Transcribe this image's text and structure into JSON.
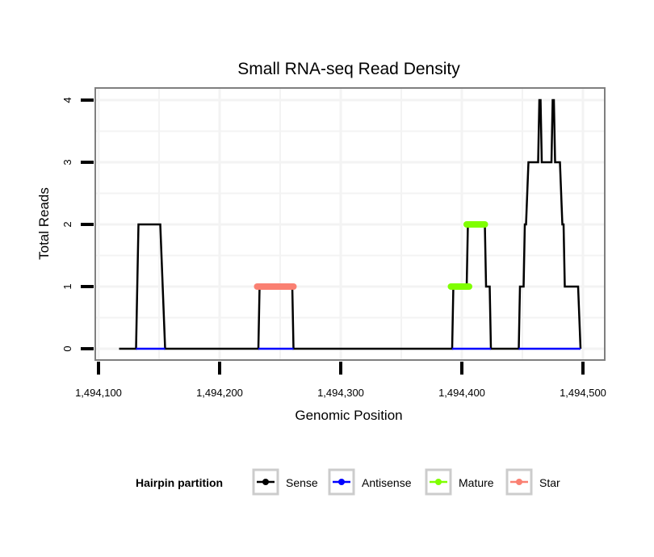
{
  "chart_data": {
    "type": "line",
    "title": "Small RNA-seq Read Density",
    "xlabel": "Genomic Position",
    "ylabel": "Total Reads",
    "xlim": [
      1494090,
      1494510
    ],
    "ylim": [
      -0.18,
      4.18
    ],
    "x_ticks": [
      1494100,
      1494200,
      1494300,
      1494400,
      1494500
    ],
    "x_tick_labels": [
      "1,494,100",
      "1,494,200",
      "1,494,300",
      "1,494,400",
      "1,494,500"
    ],
    "y_ticks": [
      0,
      1,
      2,
      3,
      4
    ],
    "y_tick_labels": [
      "0",
      "1",
      "2",
      "3",
      "4"
    ],
    "grid": true,
    "legend": {
      "title": "Hairpin partition",
      "placement": "bottom",
      "entries": [
        {
          "name": "Sense",
          "color": "#000000"
        },
        {
          "name": "Antisense",
          "color": "#0000ff"
        },
        {
          "name": "Mature",
          "color": "#7fff00"
        },
        {
          "name": "Star",
          "color": "#fa8072"
        }
      ]
    },
    "series": [
      {
        "name": "Sense",
        "color": "#000000",
        "points": [
          [
            1494117,
            0
          ],
          [
            1494131,
            0
          ],
          [
            1494132,
            1
          ],
          [
            1494133,
            2
          ],
          [
            1494151,
            2
          ],
          [
            1494153,
            1
          ],
          [
            1494155,
            0
          ],
          [
            1494232,
            0
          ],
          [
            1494233,
            1
          ],
          [
            1494260,
            1
          ],
          [
            1494261,
            0
          ],
          [
            1494392,
            0
          ],
          [
            1494393,
            1
          ],
          [
            1494404,
            1
          ],
          [
            1494405,
            2
          ],
          [
            1494419,
            2
          ],
          [
            1494420,
            1
          ],
          [
            1494423,
            1
          ],
          [
            1494424,
            0
          ],
          [
            1494447,
            0
          ],
          [
            1494448,
            1
          ],
          [
            1494451,
            1
          ],
          [
            1494452,
            2
          ],
          [
            1494453,
            2
          ],
          [
            1494455,
            3
          ],
          [
            1494463,
            3
          ],
          [
            1494464,
            4
          ],
          [
            1494465,
            4
          ],
          [
            1494466,
            3
          ],
          [
            1494474,
            3
          ],
          [
            1494475,
            4
          ],
          [
            1494476,
            4
          ],
          [
            1494477,
            3
          ],
          [
            1494481,
            3
          ],
          [
            1494483,
            2
          ],
          [
            1494484,
            2
          ],
          [
            1494485,
            1
          ],
          [
            1494496,
            1
          ],
          [
            1494498,
            0
          ]
        ]
      },
      {
        "name": "Antisense",
        "color": "#0000ff",
        "segments": [
          [
            [
              1494131,
              0
            ],
            [
              1494155,
              0
            ]
          ],
          [
            [
              1494232,
              0
            ],
            [
              1494261,
              0
            ]
          ],
          [
            [
              1494392,
              0
            ],
            [
              1494424,
              0
            ]
          ],
          [
            [
              1494447,
              0
            ],
            [
              1494498,
              0
            ]
          ]
        ]
      },
      {
        "name": "Mature",
        "color": "#7fff00",
        "segments": [
          [
            [
              1494391,
              1
            ],
            [
              1494406,
              1
            ]
          ],
          [
            [
              1494404,
              2
            ],
            [
              1494419,
              2
            ]
          ]
        ]
      },
      {
        "name": "Star",
        "color": "#fa8072",
        "segments": [
          [
            [
              1494231,
              1
            ],
            [
              1494261,
              1
            ]
          ]
        ]
      }
    ]
  }
}
